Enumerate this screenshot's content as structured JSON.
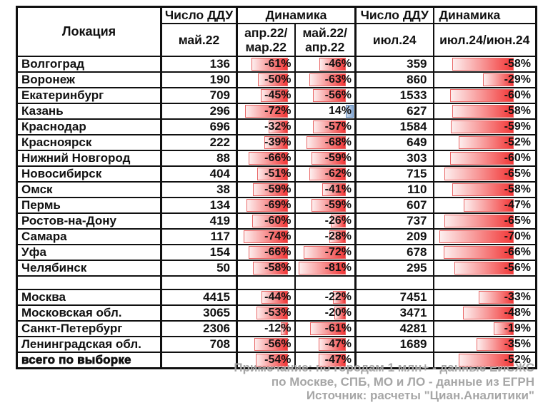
{
  "header": {
    "location": "Локация",
    "ddu_group_1": "Число ДДУ",
    "dyn_group_1": "Динамика",
    "ddu_group_2": "Число ДДУ",
    "dyn_group_2": "Динамика",
    "sub_may22": "май.22",
    "sub_apr22_mar22": "апр.22/\nмар.22",
    "sub_may22_apr22": "май.22/\nапр.22",
    "sub_jul24": "июл.24",
    "sub_jul24_jun24": "июл.24/июн.24"
  },
  "chart_data": {
    "type": "table",
    "columns": [
      "Локация",
      "Число ДДУ май.22",
      "Динамика апр.22/мар.22 (%)",
      "Динамика май.22/апр.22 (%)",
      "Число ДДУ июл.24",
      "Динамика июл.24/июн.24 (%)"
    ],
    "rows": [
      {
        "location": "Волгоград",
        "ddu_may22": 136,
        "dyn_apr22_mar22": -61,
        "dyn_may22_apr22": -46,
        "ddu_jul24": 359,
        "dyn_jul24_jun24": -58
      },
      {
        "location": "Воронеж",
        "ddu_may22": 190,
        "dyn_apr22_mar22": -50,
        "dyn_may22_apr22": -63,
        "ddu_jul24": 860,
        "dyn_jul24_jun24": -29
      },
      {
        "location": "Екатеринбург",
        "ddu_may22": 709,
        "dyn_apr22_mar22": -45,
        "dyn_may22_apr22": -56,
        "ddu_jul24": 1533,
        "dyn_jul24_jun24": -60
      },
      {
        "location": "Казань",
        "ddu_may22": 296,
        "dyn_apr22_mar22": -72,
        "dyn_may22_apr22": 14,
        "ddu_jul24": 627,
        "dyn_jul24_jun24": -58
      },
      {
        "location": "Краснодар",
        "ddu_may22": 696,
        "dyn_apr22_mar22": -32,
        "dyn_may22_apr22": -57,
        "ddu_jul24": 1584,
        "dyn_jul24_jun24": -59
      },
      {
        "location": "Красноярск",
        "ddu_may22": 222,
        "dyn_apr22_mar22": -39,
        "dyn_may22_apr22": -68,
        "ddu_jul24": 649,
        "dyn_jul24_jun24": -52
      },
      {
        "location": "Нижний Новгород",
        "ddu_may22": 88,
        "dyn_apr22_mar22": -66,
        "dyn_may22_apr22": -59,
        "ddu_jul24": 303,
        "dyn_jul24_jun24": -60
      },
      {
        "location": "Новосибирск",
        "ddu_may22": 404,
        "dyn_apr22_mar22": -51,
        "dyn_may22_apr22": -62,
        "ddu_jul24": 715,
        "dyn_jul24_jun24": -65
      },
      {
        "location": "Омск",
        "ddu_may22": 38,
        "dyn_apr22_mar22": -59,
        "dyn_may22_apr22": -41,
        "ddu_jul24": 110,
        "dyn_jul24_jun24": -58
      },
      {
        "location": "Пермь",
        "ddu_may22": 134,
        "dyn_apr22_mar22": -69,
        "dyn_may22_apr22": -59,
        "ddu_jul24": 607,
        "dyn_jul24_jun24": -47
      },
      {
        "location": "Ростов-на-Дону",
        "ddu_may22": 419,
        "dyn_apr22_mar22": -60,
        "dyn_may22_apr22": -26,
        "ddu_jul24": 737,
        "dyn_jul24_jun24": -65
      },
      {
        "location": "Самара",
        "ddu_may22": 117,
        "dyn_apr22_mar22": -74,
        "dyn_may22_apr22": -28,
        "ddu_jul24": 209,
        "dyn_jul24_jun24": -70
      },
      {
        "location": "Уфа",
        "ddu_may22": 154,
        "dyn_apr22_mar22": -66,
        "dyn_may22_apr22": -72,
        "ddu_jul24": 678,
        "dyn_jul24_jun24": -66
      },
      {
        "location": "Челябинск",
        "ddu_may22": 50,
        "dyn_apr22_mar22": -58,
        "dyn_may22_apr22": -81,
        "ddu_jul24": 295,
        "dyn_jul24_jun24": -56
      },
      {
        "location": "",
        "spacer": true,
        "ddu_may22": null,
        "dyn_apr22_mar22": null,
        "dyn_may22_apr22": null,
        "ddu_jul24": null,
        "dyn_jul24_jun24": null
      },
      {
        "location": "Москва",
        "ddu_may22": 4415,
        "dyn_apr22_mar22": -44,
        "dyn_may22_apr22": -22,
        "ddu_jul24": 7451,
        "dyn_jul24_jun24": -33
      },
      {
        "location": "Московская обл.",
        "ddu_may22": 3065,
        "dyn_apr22_mar22": -53,
        "dyn_may22_apr22": -20,
        "ddu_jul24": 3471,
        "dyn_jul24_jun24": -48
      },
      {
        "location": "Санкт-Петербург",
        "ddu_may22": 2306,
        "dyn_apr22_mar22": -12,
        "dyn_may22_apr22": -61,
        "ddu_jul24": 4281,
        "dyn_jul24_jun24": -19
      },
      {
        "location": "Ленинградская обл.",
        "ddu_may22": 708,
        "dyn_apr22_mar22": -56,
        "dyn_may22_apr22": -47,
        "ddu_jul24": 1689,
        "dyn_jul24_jun24": -35
      },
      {
        "location": "всего по выборке",
        "total": true,
        "ddu_may22": null,
        "dyn_apr22_mar22": -54,
        "dyn_may22_apr22": -47,
        "ddu_jul24": null,
        "dyn_jul24_jun24": -52
      }
    ],
    "value_suffix": "%",
    "colors": {
      "negative_bar_strong": "#f23636",
      "negative_bar_light": "#fdeeee",
      "negative_bar_border": "#e96565",
      "positive_bar": "#84a7d3",
      "positive_bar_border": "#5e88ba",
      "grid": "#101010",
      "note_text": "#a6a6a6"
    }
  },
  "footnote": {
    "lines": [
      "Примечание: по городам 1 млн+ - данные ЕИСЖС",
      "по Москве, СПБ, МО и ЛО - данные из ЕГРН",
      "Источник: расчеты \"Циан.Аналитики\""
    ]
  }
}
